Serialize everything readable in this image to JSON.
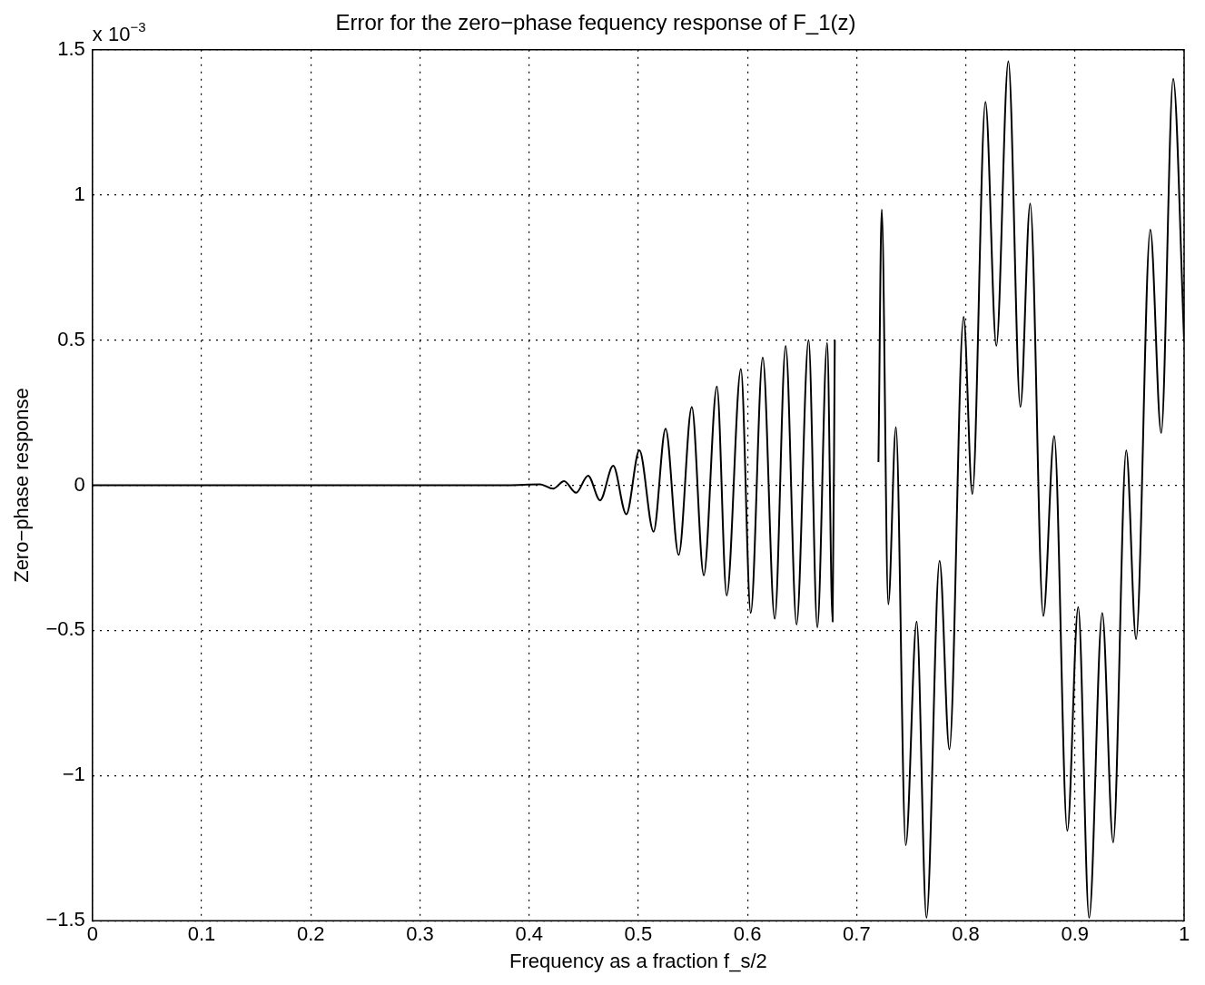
{
  "chart_data": {
    "type": "line",
    "title": "Error for the zero−phase fequency response of F_1(z)",
    "xlabel": "Frequency as a fraction f_s/2",
    "ylabel": "Zero−phase response",
    "annotations": [
      "x 10$^{−3}$"
    ],
    "series": [
      {
        "color": "#000000",
        "x": [
          0,
          0.38,
          0.41,
          0.422,
          0.432,
          0.443,
          0.454,
          0.465,
          0.477,
          0.489,
          0.501,
          0.514,
          0.525,
          0.537,
          0.549,
          0.56,
          0.572,
          0.581,
          0.594,
          0.603,
          0.614,
          0.625,
          0.635,
          0.645,
          0.656,
          0.664,
          0.673,
          0.678,
          0.68
        ],
        "values": [
          0,
          0,
          0.003,
          -0.012,
          0.014,
          -0.026,
          0.033,
          -0.052,
          0.067,
          -0.1,
          0.12,
          -0.16,
          0.195,
          -0.24,
          0.27,
          -0.31,
          0.34,
          -0.38,
          0.4,
          -0.44,
          0.44,
          -0.46,
          0.48,
          -0.48,
          0.5,
          -0.49,
          0.49,
          -0.47,
          0.5
        ]
      },
      {
        "color": "#000000",
        "x": [
          0.72,
          0.723,
          0.729,
          0.736,
          0.745,
          0.755,
          0.764,
          0.776,
          0.785,
          0.798,
          0.806,
          0.818,
          0.828,
          0.839,
          0.85,
          0.859,
          0.871,
          0.881,
          0.893,
          0.903,
          0.913,
          0.925,
          0.935,
          0.947,
          0.956,
          0.969,
          0.979,
          0.99,
          1
        ],
        "values": [
          0.08,
          0.95,
          -0.41,
          0.2,
          -1.24,
          -0.47,
          -1.49,
          -0.26,
          -0.91,
          0.58,
          -0.03,
          1.32,
          0.48,
          1.46,
          0.27,
          0.97,
          -0.45,
          0.17,
          -1.19,
          -0.42,
          -1.49,
          -0.44,
          -1.23,
          0.12,
          -0.53,
          0.88,
          0.18,
          1.4,
          0.5
        ]
      }
    ],
    "xlim": [
      0,
      1
    ],
    "xticks": [
      0,
      0.1,
      0.2,
      0.3,
      0.4,
      0.5,
      0.6,
      0.7,
      0.8,
      0.9,
      1
    ],
    "ylim": [
      -1.5,
      1.5
    ],
    "yticks": [
      {
        "value": -1.5,
        "label": "−1.5"
      },
      {
        "value": -1,
        "label": "−1"
      },
      {
        "value": -0.5,
        "label": "−0.5"
      },
      0,
      0.5,
      1,
      1.5
    ],
    "grid": true,
    "legend": false,
    "marker": "none",
    "line_style": "solid"
  }
}
